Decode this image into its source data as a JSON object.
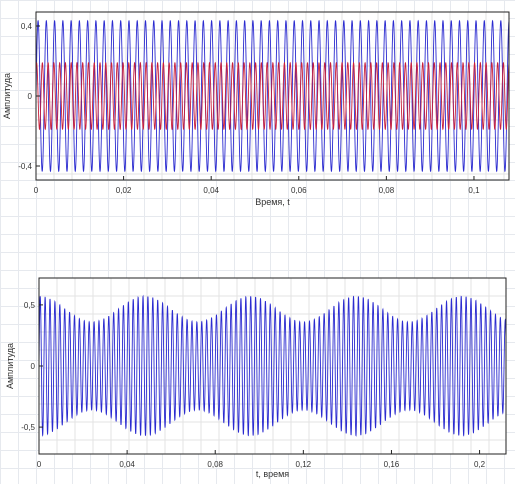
{
  "chart_data": [
    {
      "type": "line",
      "xlabel": "Время, t",
      "ylabel": "Амплитуда",
      "xlim": [
        0,
        0.108
      ],
      "ylim": [
        -0.48,
        0.48
      ],
      "x_ticks": [
        "0",
        "0,02",
        "0,04",
        "0,06",
        "0,08",
        "0,1"
      ],
      "y_ticks": [
        "0,4",
        "0",
        "-0,4"
      ],
      "x_tick_values": [
        0,
        0.02,
        0.04,
        0.06,
        0.08,
        0.1
      ],
      "y_tick_values": [
        0.4,
        0,
        -0.4
      ],
      "grid": true,
      "series": [
        {
          "color": "#2b2bd0",
          "amplitude": 0.43,
          "frequency_hz": 530,
          "t_range": [
            0,
            0.108
          ]
        },
        {
          "color": "#c8203c",
          "amplitude": 0.19,
          "frequency_hz": 760,
          "t_range": [
            0,
            0.108
          ]
        }
      ]
    },
    {
      "type": "line",
      "xlabel": "t, время",
      "ylabel": "Амплитуда",
      "xlim": [
        0,
        0.212
      ],
      "ylim": [
        -0.72,
        0.72
      ],
      "x_ticks": [
        "0",
        "0,04",
        "0,08",
        "0,12",
        "0,16",
        "0,2"
      ],
      "y_ticks": [
        "0,5",
        "0",
        "-0,5"
      ],
      "x_tick_values": [
        0,
        0.04,
        0.08,
        0.12,
        0.16,
        0.2
      ],
      "y_tick_values": [
        0.5,
        0,
        -0.5
      ],
      "grid": true,
      "series": [
        {
          "color": "#2b2bd0",
          "frequency_hz": 450,
          "envelope_min": 0.36,
          "envelope_max": 0.57,
          "envelope_period": 0.048,
          "envelope_first_max_t": 0.048,
          "t_range": [
            0,
            0.212
          ]
        }
      ]
    }
  ]
}
